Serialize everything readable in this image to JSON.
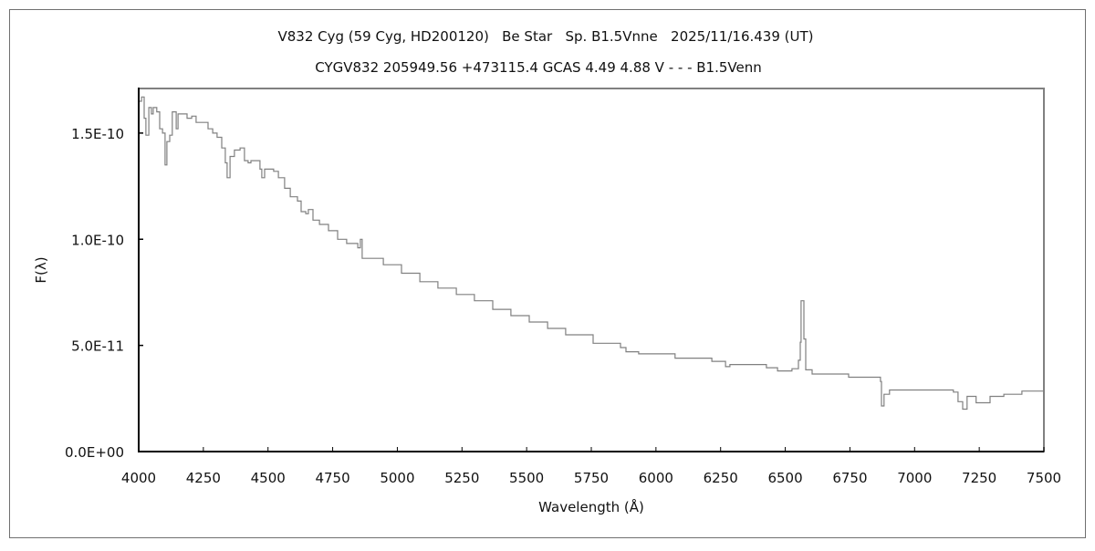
{
  "chart_data": {
    "type": "line",
    "title": "V832 Cyg (59 Cyg, HD200120)   Be Star   Sp. B1.5Vnne   2025/11/16.439 (UT)",
    "subtitle": "CYGV832 205949.56 +473115.4 GCAS 4.49 4.88 V - - - B1.5Venn",
    "xlabel": "Wavelength (Å)",
    "ylabel": "F(λ)",
    "xlim": [
      4000,
      7500
    ],
    "ylim": [
      0,
      1.71e-10
    ],
    "xticks": [
      4000,
      4250,
      4500,
      4750,
      5000,
      5250,
      5500,
      5750,
      6000,
      6250,
      6500,
      6750,
      7000,
      7250,
      7500
    ],
    "xtick_labels": [
      "4000",
      "4250",
      "4500",
      "4750",
      "5000",
      "5250",
      "5500",
      "5750",
      "6000",
      "6250",
      "6500",
      "6750",
      "7000",
      "7250",
      "7500"
    ],
    "yticks": [
      0,
      5e-11,
      1e-10,
      1.5e-10
    ],
    "ytick_labels": [
      "0.0E+00",
      "5.0E-11",
      "1.0E-10",
      "1.5E-10"
    ],
    "grid": false,
    "line_color": "#808080",
    "series": [
      {
        "name": "spectrum",
        "flux_unit_scale": 1e-11,
        "x": [
          4000,
          4011,
          4021,
          4028,
          4039,
          4049,
          4056,
          4070,
          4081,
          4092,
          4102,
          4109,
          4120,
          4130,
          4145,
          4152,
          4169,
          4187,
          4205,
          4222,
          4247,
          4268,
          4286,
          4303,
          4321,
          4335,
          4342,
          4353,
          4370,
          4392,
          4409,
          4423,
          4434,
          4469,
          4476,
          4487,
          4522,
          4540,
          4564,
          4586,
          4600,
          4614,
          4628,
          4646,
          4656,
          4674,
          4699,
          4734,
          4769,
          4804,
          4847,
          4857,
          4864,
          4875,
          4946,
          5016,
          5087,
          5157,
          5228,
          5298,
          5369,
          5439,
          5510,
          5581,
          5651,
          5757,
          5863,
          5884,
          5933,
          6074,
          6216,
          6269,
          6286,
          6427,
          6470,
          6526,
          6551,
          6558,
          6561,
          6568,
          6572,
          6579,
          6604,
          6745,
          6868,
          6872,
          6882,
          6903,
          7027,
          7150,
          7168,
          7186,
          7203,
          7238,
          7292,
          7345,
          7415,
          7500
        ],
        "y": [
          16.5,
          16.7,
          15.7,
          14.9,
          16.2,
          15.9,
          16.2,
          16.0,
          15.2,
          15.0,
          13.5,
          14.6,
          14.9,
          16.0,
          15.2,
          15.9,
          15.9,
          15.7,
          15.8,
          15.5,
          15.5,
          15.2,
          15.0,
          14.8,
          14.3,
          13.6,
          12.9,
          13.9,
          14.2,
          14.3,
          13.7,
          13.6,
          13.7,
          13.3,
          12.9,
          13.3,
          13.2,
          12.9,
          12.4,
          12.0,
          12.0,
          11.8,
          11.3,
          11.2,
          11.4,
          10.9,
          10.7,
          10.4,
          10.0,
          9.8,
          9.6,
          10.0,
          9.1,
          9.1,
          8.8,
          8.4,
          8.0,
          7.7,
          7.4,
          7.1,
          6.7,
          6.4,
          6.1,
          5.8,
          5.5,
          5.1,
          4.9,
          4.7,
          4.6,
          4.4,
          4.25,
          4.0,
          4.1,
          3.95,
          3.8,
          3.9,
          4.3,
          5.15,
          7.1,
          7.1,
          5.3,
          3.85,
          3.65,
          3.5,
          3.3,
          2.15,
          2.7,
          2.9,
          2.9,
          2.8,
          2.35,
          2.0,
          2.6,
          2.3,
          2.6,
          2.7,
          2.85,
          2.85
        ]
      }
    ]
  }
}
